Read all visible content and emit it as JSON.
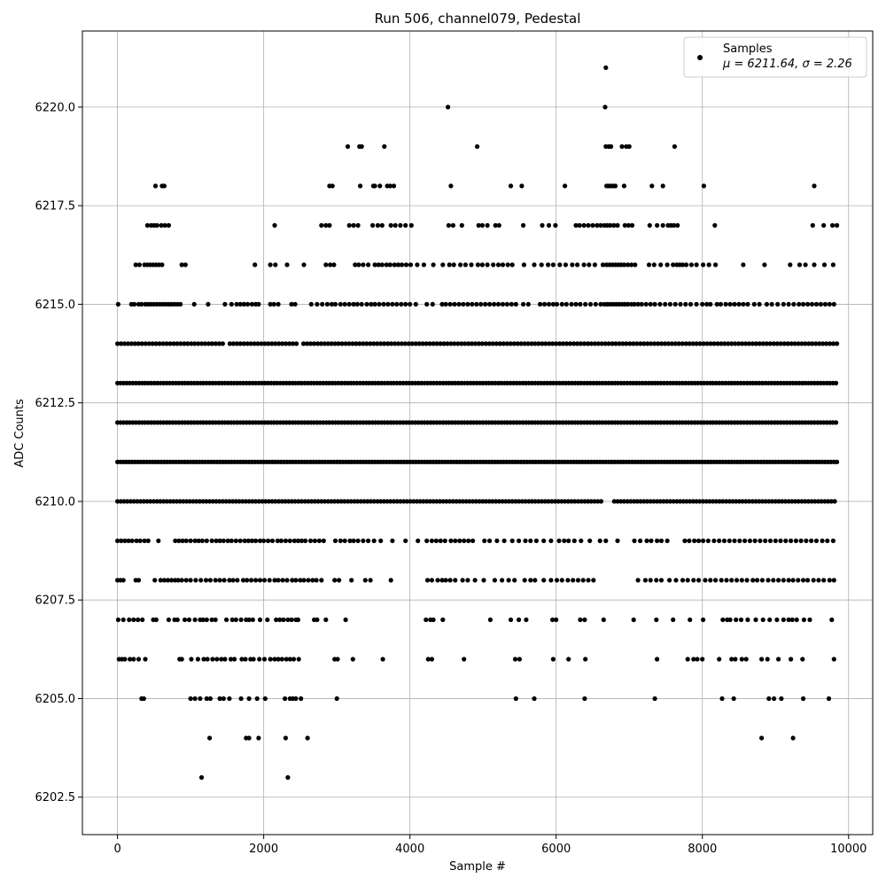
{
  "chart_data": {
    "type": "scatter",
    "title": "Run 506, channel079, Pedestal",
    "xlabel": "Sample #",
    "ylabel": "ADC Counts",
    "xlim": [
      -480,
      10330
    ],
    "ylim": [
      6201.55,
      6221.93
    ],
    "xticks": [
      0,
      2000,
      4000,
      6000,
      8000,
      10000
    ],
    "xtick_labels": [
      "0",
      "2000",
      "4000",
      "6000",
      "8000",
      "10000"
    ],
    "yticks": [
      6202.5,
      6205.0,
      6207.5,
      6210.0,
      6212.5,
      6215.0,
      6217.5,
      6220.0
    ],
    "ytick_labels": [
      "6202.5",
      "6205.0",
      "6207.5",
      "6210.0",
      "6212.5",
      "6215.0",
      "6217.5",
      "6220.0"
    ],
    "grid": true,
    "marker_color": "#000000",
    "legend": {
      "placement": "top-right",
      "label": "Samples",
      "stats": "μ = 6211.64, σ = 2.26"
    },
    "x_range": [
      0,
      9850
    ],
    "levels": [
      {
        "y": 6203,
        "x": [
          1150,
          2330
        ]
      },
      {
        "y": 6204,
        "x": [
          1260,
          1760,
          1800,
          1930,
          2300,
          2600,
          8810,
          9240
        ]
      },
      {
        "y": 6205,
        "x": [
          330,
          360,
          1000,
          1060,
          1130,
          1220,
          1270,
          1400,
          1450,
          1530,
          1690,
          1800,
          1910,
          2020,
          2290,
          2360,
          2400,
          2440,
          2510,
          3000,
          5450,
          5700,
          6390,
          7350,
          8270,
          8430,
          8910,
          8980,
          9080,
          9380,
          9730
        ]
      },
      {
        "y": 6206,
        "x": [
          20,
          60,
          100,
          170,
          220,
          290,
          380,
          850,
          880,
          1010,
          1100,
          1180,
          1230,
          1300,
          1360,
          1420,
          1470,
          1550,
          1600,
          1700,
          1750,
          1820,
          1860,
          1940,
          2010,
          2090,
          2150,
          2200,
          2250,
          2310,
          2360,
          2410,
          2480,
          2970,
          3010,
          3220,
          3630,
          4250,
          4300,
          4740,
          5440,
          5500,
          5960,
          6170,
          6400,
          7380,
          7800,
          7880,
          7930,
          8000,
          8230,
          8400,
          8450,
          8540,
          8600,
          8810,
          8890,
          9040,
          9210,
          9370,
          9800
        ]
      },
      {
        "y": 6207,
        "x": [
          10,
          80,
          160,
          220,
          280,
          340,
          490,
          530,
          700,
          780,
          820,
          920,
          980,
          1060,
          1130,
          1170,
          1220,
          1290,
          1340,
          1490,
          1570,
          1620,
          1690,
          1760,
          1800,
          1850,
          1950,
          2050,
          2170,
          2220,
          2270,
          2330,
          2380,
          2440,
          2470,
          2690,
          2730,
          2850,
          3120,
          4220,
          4280,
          4320,
          4450,
          5100,
          5380,
          5490,
          5590,
          5950,
          6000,
          6330,
          6390,
          6650,
          7060,
          7370,
          7600,
          7830,
          8010,
          8280,
          8340,
          8380,
          8460,
          8530,
          8620,
          8730,
          8830,
          8920,
          9020,
          9110,
          9180,
          9230,
          9290,
          9390,
          9470,
          9770
        ]
      },
      {
        "y": 6208,
        "x": [
          0,
          40,
          80,
          250,
          290,
          510,
          590,
          640,
          690,
          740,
          790,
          830,
          880,
          940,
          1000,
          1070,
          1140,
          1210,
          1270,
          1340,
          1400,
          1460,
          1530,
          1580,
          1640,
          1720,
          1770,
          1830,
          1890,
          1950,
          2010,
          2080,
          2150,
          2200,
          2260,
          2320,
          2390,
          2440,
          2500,
          2550,
          2610,
          2670,
          2720,
          2790,
          2970,
          3030,
          3200,
          3390,
          3460,
          3740,
          4240,
          4300,
          4380,
          4440,
          4490,
          4550,
          4620,
          4720,
          4790,
          4890,
          5010,
          5160,
          5260,
          5350,
          5430,
          5570,
          5650,
          5710,
          5830,
          5930,
          6010,
          6080,
          6160,
          6230,
          6300,
          6370,
          6440,
          6510,
          7120,
          7220,
          7290,
          7370,
          7440,
          7550,
          7640,
          7730,
          7800,
          7880,
          7950,
          8040,
          8110,
          8180,
          8260,
          8330,
          8400,
          8470,
          8540,
          8610,
          8690,
          8750,
          8820,
          8900,
          8970,
          9040,
          9110,
          9180,
          9240,
          9310,
          9380,
          9440,
          9520,
          9590,
          9660,
          9740,
          9800
        ]
      },
      {
        "y": 6209,
        "x": [
          0,
          50,
          100,
          150,
          200,
          260,
          310,
          370,
          420,
          560,
          790,
          840,
          890,
          940,
          1000,
          1060,
          1110,
          1160,
          1220,
          1290,
          1350,
          1400,
          1450,
          1510,
          1560,
          1620,
          1680,
          1740,
          1790,
          1840,
          1890,
          1950,
          2000,
          2060,
          2120,
          2190,
          2240,
          2300,
          2360,
          2420,
          2470,
          2520,
          2570,
          2640,
          2700,
          2760,
          2820,
          2980,
          3050,
          3110,
          3180,
          3230,
          3290,
          3360,
          3430,
          3510,
          3600,
          3760,
          3940,
          4110,
          4230,
          4300,
          4360,
          4420,
          4480,
          4560,
          4620,
          4680,
          4740,
          4800,
          4860,
          5020,
          5090,
          5190,
          5290,
          5400,
          5490,
          5580,
          5650,
          5730,
          5830,
          5930,
          6040,
          6110,
          6170,
          6250,
          6340,
          6460,
          6600,
          6680,
          6840,
          7070,
          7150,
          7240,
          7300,
          7380,
          7440,
          7520,
          7760,
          7820,
          7890,
          7950,
          8010,
          8080,
          8160,
          8230,
          8300,
          8370,
          8440,
          8510,
          8580,
          8650,
          8720,
          8790,
          8860,
          8930,
          9000,
          9070,
          9140,
          9210,
          9280,
          9350,
          9420,
          9490,
          9560,
          9640,
          9710,
          9790
        ]
      },
      {
        "y": 6210,
        "x_step": 45,
        "x_range": [
          0,
          9850
        ],
        "gaps": [
          [
            6660,
            6780
          ]
        ]
      },
      {
        "y": 6211,
        "x_step": 40,
        "x_range": [
          0,
          9850
        ]
      },
      {
        "y": 6212,
        "x_step": 42,
        "x_range": [
          0,
          9850
        ]
      },
      {
        "y": 6213,
        "x_step": 42,
        "x_range": [
          0,
          9850
        ]
      },
      {
        "y": 6214,
        "x_step": 48,
        "x_range": [
          0,
          9850
        ],
        "gaps": [
          [
            1480,
            1520
          ],
          [
            2460,
            2500
          ]
        ]
      },
      {
        "y": 6215,
        "x": [
          10,
          190,
          230,
          290,
          330,
          380,
          420,
          460,
          500,
          540,
          580,
          620,
          660,
          700,
          740,
          780,
          820,
          860,
          1050,
          1240,
          1470,
          1560,
          1630,
          1680,
          1730,
          1780,
          1840,
          1890,
          1930,
          2090,
          2140,
          2200,
          2380,
          2430,
          2650,
          2730,
          2800,
          2870,
          2930,
          2980,
          3050,
          3110,
          3170,
          3230,
          3280,
          3340,
          3410,
          3470,
          3520,
          3580,
          3640,
          3700,
          3760,
          3820,
          3880,
          3940,
          4000,
          4080,
          4230,
          4310,
          4440,
          4490,
          4550,
          4610,
          4670,
          4730,
          4790,
          4850,
          4910,
          4970,
          5030,
          5090,
          5150,
          5210,
          5270,
          5330,
          5390,
          5450,
          5550,
          5620,
          5780,
          5840,
          5900,
          5960,
          6010,
          6080,
          6140,
          6210,
          6270,
          6330,
          6400,
          6470,
          6540,
          6610,
          6660,
          6700,
          6740,
          6780,
          6820,
          6860,
          6900,
          6940,
          6980,
          7030,
          7070,
          7120,
          7170,
          7230,
          7290,
          7350,
          7420,
          7490,
          7560,
          7630,
          7700,
          7770,
          7840,
          7920,
          8000,
          8060,
          8110,
          8200,
          8250,
          8320,
          8380,
          8440,
          8500,
          8560,
          8620,
          8710,
          8780,
          8880,
          8950,
          9030,
          9110,
          9180,
          9250,
          9320,
          9380,
          9440,
          9500,
          9560,
          9620,
          9680,
          9740,
          9800
        ]
      },
      {
        "y": 6216,
        "x": [
          250,
          300,
          370,
          410,
          450,
          490,
          530,
          570,
          610,
          880,
          930,
          1880,
          2090,
          2160,
          2320,
          2550,
          2850,
          2910,
          2960,
          3250,
          3300,
          3360,
          3430,
          3520,
          3570,
          3620,
          3680,
          3730,
          3790,
          3840,
          3890,
          3950,
          4010,
          4100,
          4190,
          4320,
          4450,
          4540,
          4600,
          4690,
          4760,
          4840,
          4930,
          4990,
          5060,
          5140,
          5210,
          5270,
          5340,
          5400,
          5560,
          5700,
          5800,
          5890,
          5960,
          6050,
          6130,
          6220,
          6290,
          6380,
          6450,
          6530,
          6640,
          6690,
          6730,
          6770,
          6810,
          6850,
          6890,
          6930,
          6980,
          7030,
          7080,
          7270,
          7340,
          7430,
          7520,
          7600,
          7650,
          7690,
          7730,
          7780,
          7850,
          7920,
          8010,
          8090,
          8180,
          8560,
          8850,
          9200,
          9330,
          9410,
          9530,
          9670,
          9790
        ]
      },
      {
        "y": 6217,
        "x": [
          410,
          460,
          500,
          540,
          600,
          650,
          700,
          2150,
          2790,
          2850,
          2900,
          3170,
          3230,
          3290,
          3490,
          3560,
          3620,
          3740,
          3800,
          3870,
          3940,
          4020,
          4530,
          4590,
          4710,
          4940,
          4990,
          5060,
          5170,
          5220,
          5550,
          5810,
          5900,
          5990,
          6270,
          6320,
          6380,
          6440,
          6500,
          6560,
          6610,
          6660,
          6700,
          6740,
          6790,
          6840,
          6940,
          6990,
          7040,
          7280,
          7380,
          7460,
          7530,
          7570,
          7610,
          7660,
          8170,
          9510,
          9660,
          9780,
          9840
        ]
      },
      {
        "y": 6218,
        "x": [
          520,
          610,
          640,
          2900,
          2940,
          3320,
          3500,
          3520,
          3590,
          3690,
          3730,
          3780,
          4560,
          5380,
          5530,
          6120,
          6690,
          6720,
          6750,
          6780,
          6810,
          6930,
          7310,
          7460,
          8020,
          9530
        ]
      },
      {
        "y": 6219,
        "x": [
          3150,
          3310,
          3340,
          3650,
          4920,
          6680,
          6720,
          6750,
          6900,
          6960,
          7000,
          7620
        ]
      },
      {
        "y": 6220,
        "x": [
          4520,
          6670
        ]
      },
      {
        "y": 6221,
        "x": [
          6680
        ]
      }
    ]
  }
}
